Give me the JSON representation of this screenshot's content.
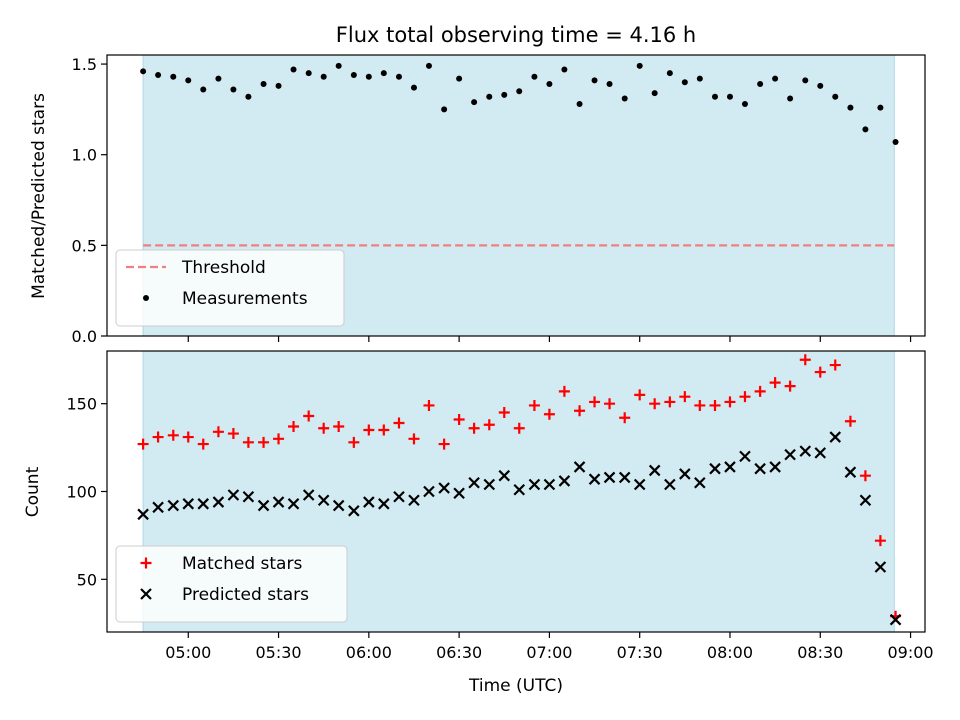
{
  "chart_data": {
    "type": "scatter",
    "title": "Flux total observing time = 4.16 h",
    "xlabel": "Time (UTC)",
    "x_unit": "time of day (UTC), hours",
    "x_ticks": [
      {
        "value": 5.0,
        "label": "05:00"
      },
      {
        "value": 5.5,
        "label": "05:30"
      },
      {
        "value": 6.0,
        "label": "06:00"
      },
      {
        "value": 6.5,
        "label": "06:30"
      },
      {
        "value": 7.0,
        "label": "07:00"
      },
      {
        "value": 7.5,
        "label": "07:30"
      },
      {
        "value": 8.0,
        "label": "08:00"
      },
      {
        "value": 8.5,
        "label": "08:30"
      },
      {
        "value": 9.0,
        "label": "09:00"
      }
    ],
    "xlim": [
      4.55,
      9.08
    ],
    "shaded_interval": [
      4.75,
      8.91
    ],
    "shade_color": "#add8e6",
    "panels": [
      {
        "ylabel": "Matched/Predicted stars",
        "ylim": [
          0.0,
          1.55
        ],
        "y_ticks": [
          {
            "value": 0.0,
            "label": "0.0"
          },
          {
            "value": 0.5,
            "label": "0.5"
          },
          {
            "value": 1.0,
            "label": "1.0"
          },
          {
            "value": 1.5,
            "label": "1.5"
          }
        ],
        "legend_position": "lower-left",
        "series": [
          {
            "name": "Threshold",
            "kind": "dashed-line",
            "color": "#f08080",
            "y": 0.5,
            "x_range": [
              4.75,
              8.91
            ]
          },
          {
            "name": "Measurements",
            "kind": "dot",
            "color": "#000000",
            "x": [
              4.75,
              4.833,
              4.917,
              5.0,
              5.083,
              5.167,
              5.25,
              5.333,
              5.417,
              5.5,
              5.583,
              5.667,
              5.75,
              5.833,
              5.917,
              6.0,
              6.083,
              6.167,
              6.25,
              6.333,
              6.417,
              6.5,
              6.583,
              6.667,
              6.75,
              6.833,
              6.917,
              7.0,
              7.083,
              7.167,
              7.25,
              7.333,
              7.417,
              7.5,
              7.583,
              7.667,
              7.75,
              7.833,
              7.917,
              8.0,
              8.083,
              8.167,
              8.25,
              8.333,
              8.417,
              8.5,
              8.583,
              8.667,
              8.75,
              8.833,
              8.917
            ],
            "y": [
              1.46,
              1.44,
              1.43,
              1.41,
              1.36,
              1.42,
              1.36,
              1.32,
              1.39,
              1.38,
              1.47,
              1.45,
              1.43,
              1.49,
              1.44,
              1.43,
              1.45,
              1.43,
              1.37,
              1.49,
              1.25,
              1.42,
              1.29,
              1.32,
              1.33,
              1.35,
              1.43,
              1.39,
              1.47,
              1.28,
              1.41,
              1.39,
              1.31,
              1.49,
              1.34,
              1.45,
              1.4,
              1.42,
              1.32,
              1.32,
              1.28,
              1.39,
              1.42,
              1.31,
              1.41,
              1.38,
              1.32,
              1.26,
              1.14,
              1.26,
              1.07
            ]
          }
        ]
      },
      {
        "ylabel": "Count",
        "ylim": [
          20,
          180
        ],
        "y_ticks": [
          {
            "value": 50,
            "label": "50"
          },
          {
            "value": 100,
            "label": "100"
          },
          {
            "value": 150,
            "label": "150"
          }
        ],
        "legend_position": "lower-left",
        "series": [
          {
            "name": "Matched stars",
            "kind": "plus",
            "color": "#ff0000",
            "x": [
              4.75,
              4.833,
              4.917,
              5.0,
              5.083,
              5.167,
              5.25,
              5.333,
              5.417,
              5.5,
              5.583,
              5.667,
              5.75,
              5.833,
              5.917,
              6.0,
              6.083,
              6.167,
              6.25,
              6.333,
              6.417,
              6.5,
              6.583,
              6.667,
              6.75,
              6.833,
              6.917,
              7.0,
              7.083,
              7.167,
              7.25,
              7.333,
              7.417,
              7.5,
              7.583,
              7.667,
              7.75,
              7.833,
              7.917,
              8.0,
              8.083,
              8.167,
              8.25,
              8.333,
              8.417,
              8.5,
              8.583,
              8.667,
              8.75,
              8.833,
              8.917
            ],
            "y": [
              127,
              131,
              132,
              131,
              127,
              134,
              133,
              128,
              128,
              130,
              137,
              143,
              136,
              137,
              128,
              135,
              135,
              139,
              130,
              149,
              127,
              141,
              136,
              138,
              145,
              136,
              149,
              144,
              157,
              146,
              151,
              150,
              142,
              155,
              150,
              151,
              154,
              149,
              149,
              151,
              154,
              157,
              162,
              160,
              175,
              168,
              172,
              140,
              109,
              72,
              29
            ]
          },
          {
            "name": "Predicted stars",
            "kind": "x",
            "color": "#000000",
            "x": [
              4.75,
              4.833,
              4.917,
              5.0,
              5.083,
              5.167,
              5.25,
              5.333,
              5.417,
              5.5,
              5.583,
              5.667,
              5.75,
              5.833,
              5.917,
              6.0,
              6.083,
              6.167,
              6.25,
              6.333,
              6.417,
              6.5,
              6.583,
              6.667,
              6.75,
              6.833,
              6.917,
              7.0,
              7.083,
              7.167,
              7.25,
              7.333,
              7.417,
              7.5,
              7.583,
              7.667,
              7.75,
              7.833,
              7.917,
              8.0,
              8.083,
              8.167,
              8.25,
              8.333,
              8.417,
              8.5,
              8.583,
              8.667,
              8.75,
              8.833,
              8.917
            ],
            "y": [
              87,
              91,
              92,
              93,
              93,
              94,
              98,
              97,
              92,
              94,
              93,
              98,
              95,
              92,
              89,
              94,
              93,
              97,
              95,
              100,
              102,
              99,
              105,
              104,
              109,
              101,
              104,
              104,
              106,
              114,
              107,
              108,
              108,
              104,
              112,
              104,
              110,
              105,
              113,
              114,
              120,
              113,
              114,
              121,
              123,
              122,
              131,
              111,
              95,
              57,
              27
            ]
          }
        ]
      }
    ]
  }
}
